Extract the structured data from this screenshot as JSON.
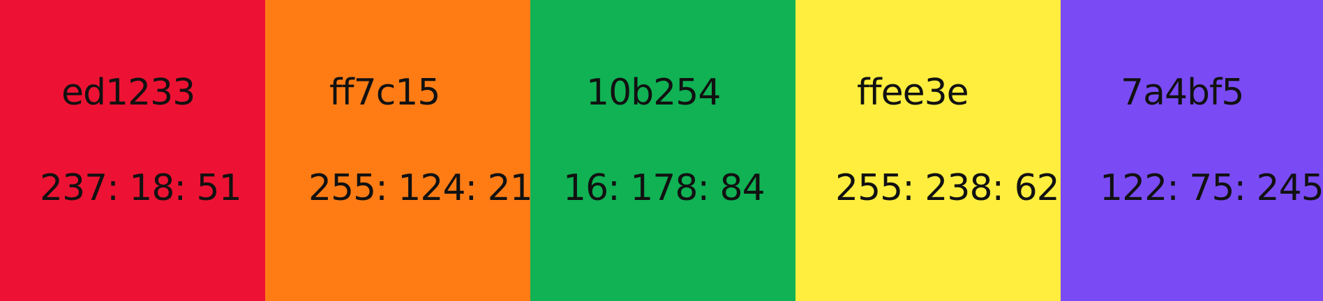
{
  "swatches": [
    {
      "hex": "ed1233",
      "rgb": "237: 18: 51",
      "color": "#ed1233"
    },
    {
      "hex": "ff7c15",
      "rgb": "255: 124: 21",
      "color": "#ff7c15"
    },
    {
      "hex": "10b254",
      "rgb": "16: 178: 84",
      "color": "#10b254"
    },
    {
      "hex": "ffee3e",
      "rgb": "255: 238: 62",
      "color": "#ffee3e"
    },
    {
      "hex": "7a4bf5",
      "rgb": "122: 75: 245",
      "color": "#7a4bf5"
    }
  ]
}
